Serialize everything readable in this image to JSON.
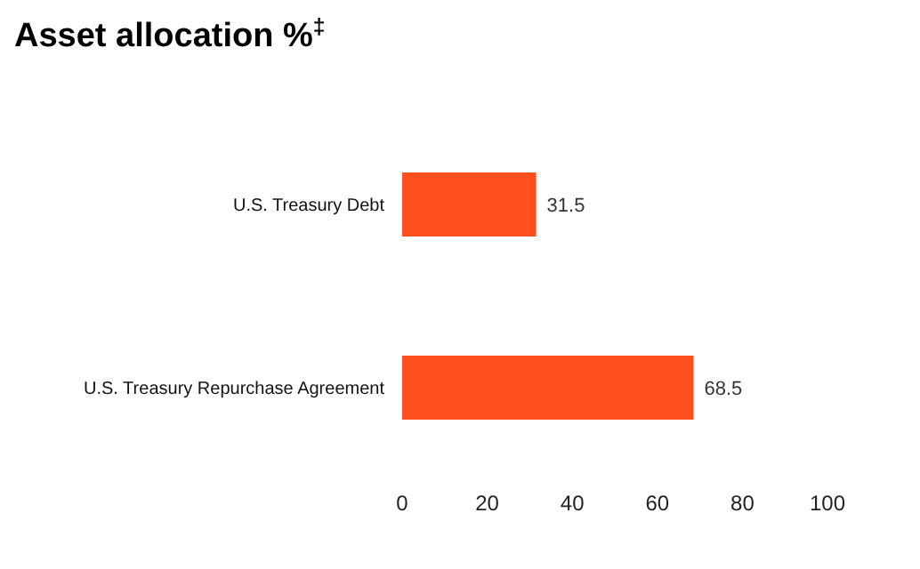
{
  "chart_data": {
    "type": "bar",
    "orientation": "horizontal",
    "title": "Asset allocation %$^{‡}$",
    "categories": [
      "U.S. Treasury Debt",
      "U.S. Treasury Repurchase Agreement"
    ],
    "values": [
      31.5,
      68.5
    ],
    "color": "#ff4f1f",
    "xlim": [
      0,
      100
    ],
    "xticks": [
      0,
      20,
      40,
      60,
      80,
      100
    ],
    "data_labels": true
  }
}
